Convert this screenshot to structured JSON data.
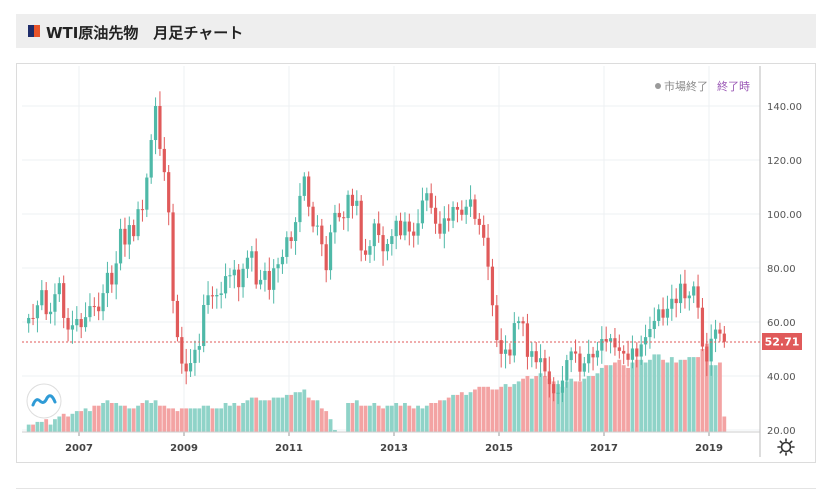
{
  "header": {
    "title": "WTI原油先物　月足チャート"
  },
  "status": {
    "market_state": "市場終了",
    "closing_time": "終了時"
  },
  "last_price_label": "52.71",
  "colors": {
    "up": "#4fb9a8",
    "down": "#e05a5a",
    "vol_up": "#8fd3c8",
    "vol_down": "#f3a3a3",
    "price_line": "#e05a5a",
    "grid": "#eef0f3",
    "axis_text": "#555555"
  },
  "chart_data": {
    "type": "candlestick",
    "title": "WTI原油先物　月足チャート",
    "x_ticks": [
      "2007",
      "2009",
      "2011",
      "2013",
      "2015",
      "2017",
      "2019"
    ],
    "y_ticks": [
      "140.00",
      "120.00",
      "100.00",
      "80.00",
      "60.00",
      "40.00",
      "20.00"
    ],
    "ylim": [
      20,
      148
    ],
    "xlim": [
      2006.0,
      2019.45
    ],
    "last_price": 52.71,
    "grid": true,
    "volume_overlay": true,
    "monthly_close": [
      61.5,
      61.4,
      66.2,
      71.8,
      62.9,
      63.8,
      70.3,
      74.4,
      61.5,
      57.2,
      58.8,
      61.1,
      58.1,
      61.8,
      65.9,
      65.7,
      64.0,
      70.7,
      78.2,
      73.9,
      81.7,
      94.5,
      88.7,
      95.9,
      91.8,
      101.8,
      101.6,
      113.5,
      127.4,
      140.0,
      124.1,
      115.5,
      100.6,
      67.8,
      54.4,
      44.6,
      41.7,
      44.8,
      49.7,
      51.1,
      66.3,
      69.9,
      69.5,
      70.0,
      70.6,
      77.0,
      77.3,
      79.4,
      72.9,
      79.7,
      83.8,
      86.2,
      73.9,
      75.6,
      78.9,
      71.9,
      79.9,
      81.4,
      84.1,
      91.4,
      90.0,
      97.0,
      106.7,
      113.9,
      102.7,
      95.4,
      95.7,
      88.8,
      79.2,
      93.2,
      100.4,
      98.8,
      98.5,
      107.1,
      103.0,
      104.9,
      86.5,
      84.9,
      88.1,
      96.5,
      92.2,
      86.2,
      88.9,
      91.8,
      97.5,
      92.1,
      97.2,
      93.5,
      91.97,
      96.56,
      105.0,
      107.7,
      102.3,
      96.4,
      92.7,
      98.4,
      97.5,
      102.6,
      101.6,
      99.7,
      102.7,
      105.4,
      98.2,
      95.96,
      91.2,
      80.5,
      66.2,
      53.3,
      48.2,
      49.8,
      47.6,
      59.6,
      60.3,
      59.5,
      47.1,
      49.2,
      45.1,
      46.6,
      41.7,
      37.0,
      33.6,
      33.8,
      38.3,
      45.9,
      49.1,
      48.3,
      41.6,
      44.7,
      48.2,
      46.9,
      49.4,
      53.7,
      52.8,
      54.0,
      50.6,
      49.3,
      48.3,
      46.0,
      50.2,
      47.2,
      51.7,
      54.4,
      57.4,
      60.4,
      64.7,
      61.6,
      64.9,
      68.6,
      67.0,
      74.2,
      68.8,
      69.8,
      73.2,
      65.3,
      50.9,
      45.4,
      53.8,
      57.2,
      55.7,
      52.71
    ],
    "monthly_volume": [
      22,
      22,
      23,
      23,
      24,
      22,
      24,
      25,
      26,
      25,
      26,
      27,
      27,
      28,
      27,
      29,
      29,
      30,
      31,
      30,
      30,
      29,
      29,
      28,
      28,
      29,
      30,
      31,
      30,
      31,
      29,
      29,
      28,
      28,
      27,
      28,
      28,
      28,
      28,
      28,
      29,
      29,
      28,
      28,
      28,
      30,
      29,
      30,
      29,
      30,
      31,
      32,
      32,
      31,
      31,
      31,
      32,
      32,
      32,
      33,
      33,
      34,
      34,
      35,
      32,
      31,
      31,
      28,
      27,
      24,
      20,
      19,
      19,
      30,
      30,
      31,
      29,
      29,
      29,
      30,
      29,
      28,
      29,
      29,
      30,
      29,
      30,
      29,
      28,
      29,
      28,
      29,
      30,
      30,
      31,
      31,
      32,
      33,
      33,
      34,
      33,
      34,
      35,
      36,
      36,
      36,
      35,
      35,
      36,
      37,
      36,
      37,
      38,
      39,
      40,
      39,
      40,
      41,
      40,
      39,
      38,
      37,
      36,
      38,
      39,
      38,
      38,
      39,
      40,
      40,
      41,
      43,
      44,
      44,
      45,
      46,
      44,
      43,
      45,
      46,
      46,
      45,
      46,
      48,
      48,
      46,
      45,
      47,
      45,
      46,
      46,
      47,
      47,
      47,
      50,
      52,
      44,
      44,
      45,
      25
    ]
  }
}
